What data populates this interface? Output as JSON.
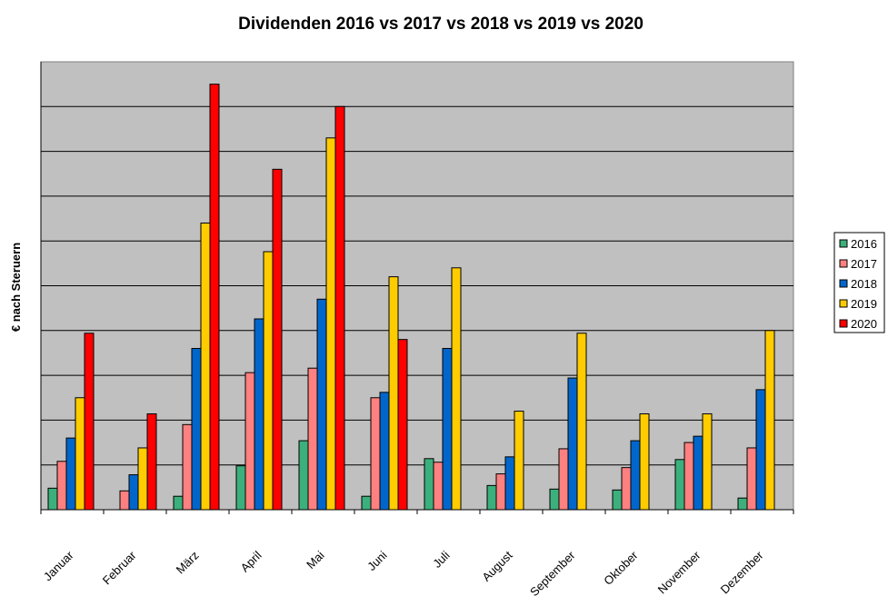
{
  "chart_data": {
    "type": "bar",
    "title": "Dividenden 2016 vs 2017 vs 2018 vs 2019 vs 2020",
    "ylabel": "€ nach Steruern",
    "xlabel": "",
    "categories": [
      "Januar",
      "Februar",
      "März",
      "April",
      "Mai",
      "Juni",
      "Juli",
      "August",
      "September",
      "Oktober",
      "November",
      "Dezember"
    ],
    "ylim": [
      0,
      100
    ],
    "y_ticks_labeled": false,
    "grid": true,
    "legend_position": "right",
    "series": [
      {
        "name": "2016",
        "color": "#3cb07c",
        "values": [
          4.8,
          0,
          3.0,
          9.8,
          15.4,
          3.0,
          11.4,
          5.4,
          4.6,
          4.4,
          11.2,
          2.6
        ]
      },
      {
        "name": "2017",
        "color": "#ff8080",
        "values": [
          10.8,
          4.2,
          19.0,
          30.6,
          31.6,
          25.0,
          10.6,
          8.0,
          13.6,
          9.4,
          15.0,
          13.8
        ]
      },
      {
        "name": "2018",
        "color": "#0066cc",
        "values": [
          16.0,
          7.8,
          36.0,
          42.6,
          47.0,
          26.2,
          36.0,
          11.8,
          29.4,
          15.4,
          16.4,
          26.8
        ]
      },
      {
        "name": "2019",
        "color": "#ffcc00",
        "values": [
          25.0,
          13.8,
          64.0,
          57.6,
          83.0,
          52.0,
          54.0,
          22.0,
          39.4,
          21.4,
          21.4,
          40.0
        ]
      },
      {
        "name": "2020",
        "color": "#ff0000",
        "values": [
          39.4,
          21.4,
          95.0,
          76.0,
          90.0,
          38.0,
          null,
          null,
          null,
          null,
          null,
          null
        ]
      }
    ]
  }
}
